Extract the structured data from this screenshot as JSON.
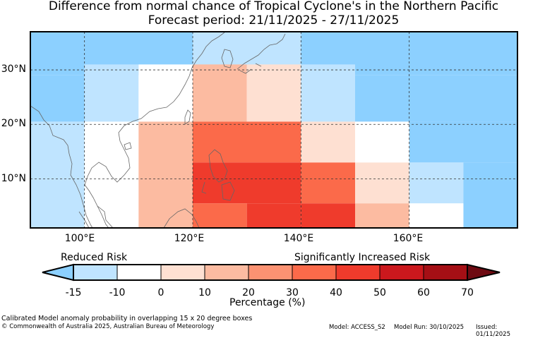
{
  "title": {
    "line1": "Difference from normal chance of Tropical Cyclone's in the Northern Pacific",
    "line2": "Forecast period: 21/11/2025 - 27/11/2025"
  },
  "map": {
    "lat_labels": [
      "30°N",
      "20°N",
      "10°N"
    ],
    "lon_labels": [
      "100°E",
      "120°E",
      "140°E",
      "160°E"
    ],
    "extent": {
      "lon": [
        90,
        180
      ],
      "lat": [
        1,
        37
      ]
    },
    "grid_lons": [
      100,
      120,
      140,
      160
    ],
    "grid_lats": [
      10,
      20,
      30
    ]
  },
  "cells": [
    {
      "lon0": 90,
      "lon1": 100,
      "lat0": 29,
      "lat1": 37,
      "pct": -20
    },
    {
      "lon0": 100,
      "lon1": 120,
      "lat0": 29,
      "lat1": 37,
      "pct": -20
    },
    {
      "lon0": 120,
      "lon1": 140,
      "lat0": 29,
      "lat1": 37,
      "pct": -12
    },
    {
      "lon0": 140,
      "lon1": 180,
      "lat0": 29,
      "lat1": 37,
      "pct": -20
    },
    {
      "lon0": 90,
      "lon1": 100,
      "lat0": 20.5,
      "lat1": 29,
      "pct": -20
    },
    {
      "lon0": 100,
      "lon1": 110,
      "lat0": 20.5,
      "lat1": 31,
      "pct": -12
    },
    {
      "lon0": 110,
      "lon1": 120,
      "lat0": 20.5,
      "lat1": 31,
      "pct": -5
    },
    {
      "lon0": 120,
      "lon1": 130,
      "lat0": 20.5,
      "lat1": 31,
      "pct": 15
    },
    {
      "lon0": 130,
      "lon1": 140,
      "lat0": 20.5,
      "lat1": 31,
      "pct": 5
    },
    {
      "lon0": 140,
      "lon1": 150,
      "lat0": 20.5,
      "lat1": 31,
      "pct": -12
    },
    {
      "lon0": 150,
      "lon1": 180,
      "lat0": 20.5,
      "lat1": 29,
      "pct": -20
    },
    {
      "lon0": 90,
      "lon1": 100,
      "lat0": 1,
      "lat1": 20.5,
      "pct": -12
    },
    {
      "lon0": 100,
      "lon1": 110,
      "lat0": 1,
      "lat1": 20.5,
      "pct": -5
    },
    {
      "lon0": 110,
      "lon1": 120,
      "lat0": 1,
      "lat1": 20.5,
      "pct": 15
    },
    {
      "lon0": 120,
      "lon1": 140,
      "lat0": 13,
      "lat1": 20.5,
      "pct": 35
    },
    {
      "lon0": 140,
      "lon1": 150,
      "lat0": 13,
      "lat1": 20.5,
      "pct": 5
    },
    {
      "lon0": 150,
      "lon1": 160,
      "lat0": 13,
      "lat1": 20.5,
      "pct": -5
    },
    {
      "lon0": 160,
      "lon1": 180,
      "lat0": 13,
      "lat1": 20.5,
      "pct": -20
    },
    {
      "lon0": 120,
      "lon1": 140,
      "lat0": 5.5,
      "lat1": 13,
      "pct": 45
    },
    {
      "lon0": 140,
      "lon1": 150,
      "lat0": 5.5,
      "lat1": 13,
      "pct": 35
    },
    {
      "lon0": 150,
      "lon1": 160,
      "lat0": 5.5,
      "lat1": 13,
      "pct": 5
    },
    {
      "lon0": 160,
      "lon1": 170,
      "lat0": 5.5,
      "lat1": 13,
      "pct": -12
    },
    {
      "lon0": 170,
      "lon1": 180,
      "lat0": 1,
      "lat1": 13,
      "pct": -20
    },
    {
      "lon0": 120,
      "lon1": 130,
      "lat0": 1,
      "lat1": 5.5,
      "pct": 35
    },
    {
      "lon0": 130,
      "lon1": 140,
      "lat0": 1,
      "lat1": 5.5,
      "pct": 45
    },
    {
      "lon0": 140,
      "lon1": 150,
      "lat0": 1,
      "lat1": 5.5,
      "pct": 45
    },
    {
      "lon0": 150,
      "lon1": 160,
      "lat0": 1,
      "lat1": 5.5,
      "pct": 15
    },
    {
      "lon0": 160,
      "lon1": 170,
      "lat0": 1,
      "lat1": 5.5,
      "pct": -5
    }
  ],
  "colorbar": {
    "reduced_label": "Reduced Risk",
    "increased_label": "Significantly Increased Risk",
    "xlabel": "Percentage (%)",
    "ticks": [
      "-15",
      "-10",
      "0",
      "10",
      "20",
      "30",
      "40",
      "50",
      "60",
      "70"
    ],
    "under_color": "#8cd0ff",
    "over_color": "#6e0a12",
    "colors": [
      "#bfe4ff",
      "#ffffff",
      "#fee0d2",
      "#fcbba1",
      "#fc9272",
      "#fb6a4a",
      "#ef3b2c",
      "#cb181d",
      "#a50f15"
    ],
    "bounds": [
      -15,
      -10,
      0,
      10,
      20,
      30,
      40,
      50,
      60,
      70
    ]
  },
  "footer": {
    "line1": "Calibrated Model anomaly probability in overlapping 15 x 20 degree boxes",
    "line2": "© Commonwealth of Australia 2025, Australian Bureau of Meteorology",
    "model": "Model: ACCESS_S2",
    "run": "Model Run: 30/10/2025",
    "issued": "Issued: 01/11/2025"
  }
}
